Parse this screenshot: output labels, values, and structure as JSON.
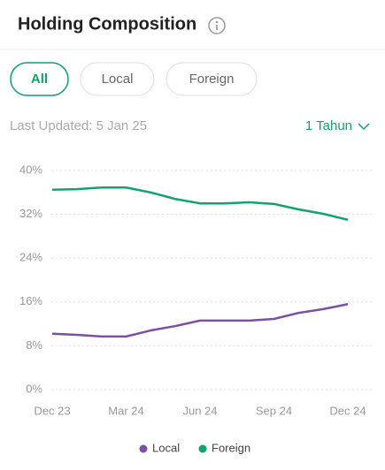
{
  "header": {
    "title": "Holding Composition"
  },
  "tabs": [
    "All",
    "Local",
    "Foreign"
  ],
  "active_tab": 0,
  "last_updated": "Last Updated: 5 Jan 25",
  "period": "1 Tahun",
  "chart_data": {
    "type": "line",
    "categories": [
      "Dec 23",
      null,
      null,
      "Mar 24",
      null,
      null,
      "Jun 24",
      null,
      null,
      "Sep 24",
      null,
      null,
      "Dec 24"
    ],
    "series": [
      {
        "name": "Local",
        "color": "#7b4fa8",
        "values": [
          10.2,
          10.0,
          9.7,
          9.7,
          10.8,
          11.6,
          12.6,
          12.6,
          12.6,
          12.9,
          14.0,
          14.7,
          15.6
        ]
      },
      {
        "name": "Foreign",
        "color": "#10a36c",
        "values": [
          36.5,
          36.6,
          36.9,
          36.9,
          36.0,
          34.8,
          34.0,
          34.0,
          34.2,
          33.9,
          32.9,
          32.1,
          31.0
        ]
      }
    ],
    "ylim": [
      0,
      40
    ],
    "yticks": [
      {
        "value": 0,
        "label": "0%"
      },
      {
        "value": 8,
        "label": "8%"
      },
      {
        "value": 16,
        "label": "16%"
      },
      {
        "value": 24,
        "label": "24%"
      },
      {
        "value": 32,
        "label": "32%"
      },
      {
        "value": 40,
        "label": "40%"
      }
    ],
    "grid": true
  }
}
